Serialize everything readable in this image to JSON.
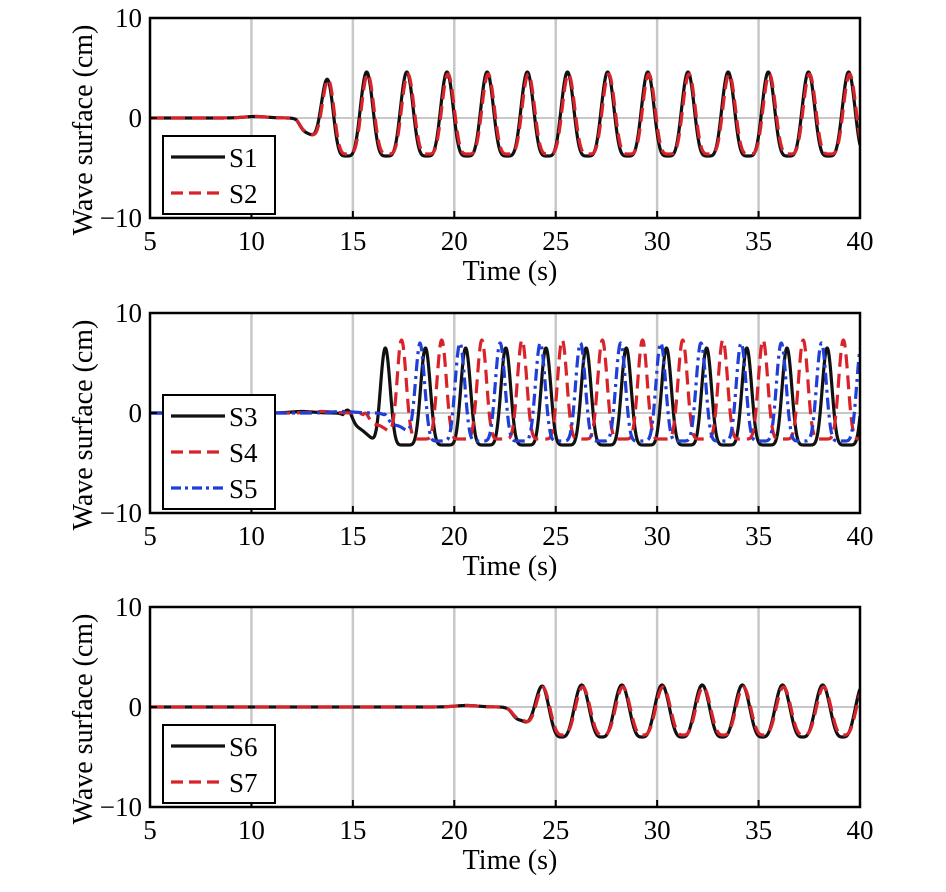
{
  "chart_data": [
    {
      "type": "line",
      "xlabel": "Time (s)",
      "ylabel": "Wave surface (cm)",
      "xlim": [
        5,
        40
      ],
      "ylim": [
        -10,
        10
      ],
      "xticks": [
        5,
        10,
        15,
        20,
        25,
        30,
        35,
        40
      ],
      "yticks": [
        -10,
        0,
        10
      ],
      "xtick_labels": [
        "5",
        "10",
        "15",
        "20",
        "25",
        "30",
        "35",
        "40"
      ],
      "ytick_labels": [
        "−10",
        "0",
        "10"
      ],
      "grid": "vertical",
      "legend_position": "bottom-left",
      "series": [
        {
          "name": "S1",
          "color": "#111111",
          "style": "solid",
          "onset": 12.2,
          "period": 1.98,
          "first_crest": 13.7,
          "crest": 4.6,
          "trough": -3.8,
          "sharpness": 2.2,
          "phase": 0
        },
        {
          "name": "S2",
          "color": "#d8232a",
          "style": "dashed",
          "onset": 12.2,
          "period": 1.98,
          "first_crest": 13.75,
          "crest": 4.4,
          "trough": -3.6,
          "sharpness": 2.2,
          "phase": 0.05
        }
      ]
    },
    {
      "type": "line",
      "xlabel": "Time (s)",
      "ylabel": "Wave surface (cm)",
      "xlim": [
        5,
        40
      ],
      "ylim": [
        -10,
        10
      ],
      "xticks": [
        5,
        10,
        15,
        20,
        25,
        30,
        35,
        40
      ],
      "yticks": [
        -10,
        0,
        10
      ],
      "xtick_labels": [
        "5",
        "10",
        "15",
        "20",
        "25",
        "30",
        "35",
        "40"
      ],
      "ytick_labels": [
        "−10",
        "0",
        "10"
      ],
      "grid": "vertical",
      "legend_position": "bottom-left",
      "series": [
        {
          "name": "S3",
          "color": "#111111",
          "style": "solid",
          "onset": 14.5,
          "period": 1.98,
          "first_crest": 16.6,
          "crest": 6.5,
          "trough": -3.2,
          "sharpness": 3.5,
          "phase": 0
        },
        {
          "name": "S4",
          "color": "#d8232a",
          "style": "dashed",
          "onset": 15.5,
          "period": 1.98,
          "first_crest": 17.4,
          "crest": 7.3,
          "trough": -2.6,
          "sharpness": 3.8,
          "phase": 0
        },
        {
          "name": "S5",
          "color": "#1f3fd8",
          "style": "dashdot",
          "onset": 16.5,
          "period": 1.98,
          "first_crest": 18.3,
          "crest": 7.0,
          "trough": -2.8,
          "sharpness": 3.6,
          "phase": 0
        }
      ]
    },
    {
      "type": "line",
      "xlabel": "Time (s)",
      "ylabel": "Wave surface (cm)",
      "xlim": [
        5,
        40
      ],
      "ylim": [
        -10,
        10
      ],
      "xticks": [
        5,
        10,
        15,
        20,
        25,
        30,
        35,
        40
      ],
      "yticks": [
        -10,
        0,
        10
      ],
      "xtick_labels": [
        "5",
        "10",
        "15",
        "20",
        "25",
        "30",
        "35",
        "40"
      ],
      "ytick_labels": [
        "−10",
        "0",
        "10"
      ],
      "grid": "vertical",
      "legend_position": "bottom-left",
      "series": [
        {
          "name": "S6",
          "color": "#111111",
          "style": "solid",
          "onset": 22.6,
          "period": 1.98,
          "first_crest": 24.3,
          "crest": 2.2,
          "trough": -3.0,
          "sharpness": 1.6,
          "phase": 0
        },
        {
          "name": "S7",
          "color": "#d8232a",
          "style": "dashed",
          "onset": 22.6,
          "period": 1.98,
          "first_crest": 24.35,
          "crest": 2.0,
          "trough": -2.8,
          "sharpness": 1.6,
          "phase": 0.05
        }
      ]
    }
  ]
}
